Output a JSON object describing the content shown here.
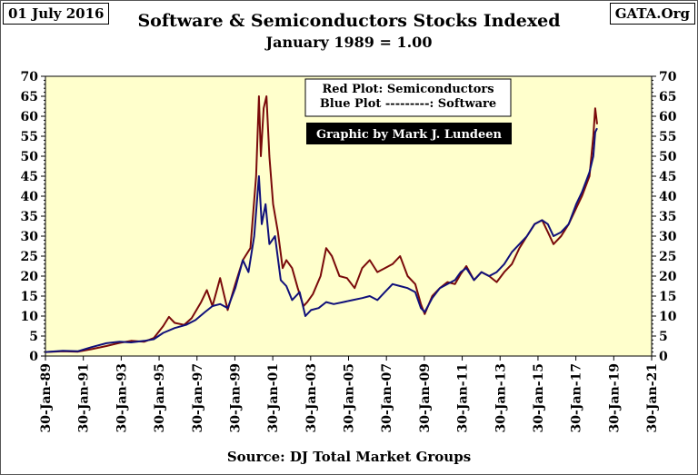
{
  "header": {
    "date": "01 July 2016",
    "site": "GATA.Org"
  },
  "footer": {
    "source": "Source: DJ  Total Market Groups"
  },
  "chart_data": {
    "type": "line",
    "title": "Software & Semiconductors  Stocks Indexed",
    "subtitle": "January 1989 = 1.00",
    "ylim": [
      0,
      70
    ],
    "yticks": [
      "0",
      "5",
      "10",
      "15",
      "20",
      "25",
      "30",
      "35",
      "40",
      "45",
      "50",
      "55",
      "60",
      "65",
      "70"
    ],
    "xlim": [
      1989.08,
      2021.08
    ],
    "xticks": [
      {
        "x": 1989.08,
        "label": "30-Jan-89"
      },
      {
        "x": 1991.08,
        "label": "30-Jan-91"
      },
      {
        "x": 1993.08,
        "label": "30-Jan-93"
      },
      {
        "x": 1995.08,
        "label": "30-Jan-95"
      },
      {
        "x": 1997.08,
        "label": "30-Jan-97"
      },
      {
        "x": 1999.08,
        "label": "30-Jan-99"
      },
      {
        "x": 2001.08,
        "label": "30-Jan-01"
      },
      {
        "x": 2003.08,
        "label": "30-Jan-03"
      },
      {
        "x": 2005.08,
        "label": "30-Jan-05"
      },
      {
        "x": 2007.08,
        "label": "30-Jan-07"
      },
      {
        "x": 2009.08,
        "label": "30-Jan-09"
      },
      {
        "x": 2011.08,
        "label": "30-Jan-11"
      },
      {
        "x": 2013.08,
        "label": "30-Jan-13"
      },
      {
        "x": 2015.08,
        "label": "30-Jan-15"
      },
      {
        "x": 2017.08,
        "label": "30-Jan-17"
      },
      {
        "x": 2019.08,
        "label": "30-Jan-19"
      },
      {
        "x": 2021.08,
        "label": "30-Jan-21"
      }
    ],
    "grid": false,
    "legend": {
      "line1": "Red Plot: Semiconductors",
      "line2": "Blue Plot ---------: Software",
      "credit": "Graphic by Mark J. Lundeen",
      "placement": "top-center"
    },
    "colors": {
      "plot_bg": "#ffffcc",
      "semiconductors": "#7a0a0a",
      "software": "#10107a"
    },
    "series": [
      {
        "name": "Semiconductors",
        "color": "#7a0a0a",
        "points": [
          [
            1989.08,
            1.0
          ],
          [
            1990.0,
            1.2
          ],
          [
            1990.8,
            1.1
          ],
          [
            1991.5,
            1.7
          ],
          [
            1992.3,
            2.5
          ],
          [
            1993.0,
            3.3
          ],
          [
            1993.6,
            3.8
          ],
          [
            1994.3,
            3.6
          ],
          [
            1994.8,
            4.5
          ],
          [
            1995.3,
            7.5
          ],
          [
            1995.6,
            9.8
          ],
          [
            1995.9,
            8.3
          ],
          [
            1996.4,
            7.8
          ],
          [
            1996.8,
            9.5
          ],
          [
            1997.3,
            13.5
          ],
          [
            1997.6,
            16.5
          ],
          [
            1997.9,
            12.5
          ],
          [
            1998.3,
            19.5
          ],
          [
            1998.7,
            11.5
          ],
          [
            1999.1,
            18.0
          ],
          [
            1999.5,
            24.0
          ],
          [
            1999.9,
            27.0
          ],
          [
            2000.2,
            45.0
          ],
          [
            2000.35,
            65.0
          ],
          [
            2000.45,
            50.0
          ],
          [
            2000.6,
            62.0
          ],
          [
            2000.75,
            65.0
          ],
          [
            2000.9,
            50.0
          ],
          [
            2001.1,
            38.0
          ],
          [
            2001.35,
            31.0
          ],
          [
            2001.6,
            22.0
          ],
          [
            2001.8,
            24.0
          ],
          [
            2002.1,
            22.0
          ],
          [
            2002.4,
            17.0
          ],
          [
            2002.7,
            12.5
          ],
          [
            2002.9,
            13.5
          ],
          [
            2003.2,
            15.5
          ],
          [
            2003.6,
            20.0
          ],
          [
            2003.9,
            27.0
          ],
          [
            2004.2,
            25.0
          ],
          [
            2004.6,
            20.0
          ],
          [
            2005.0,
            19.5
          ],
          [
            2005.4,
            17.0
          ],
          [
            2005.8,
            22.0
          ],
          [
            2006.2,
            24.0
          ],
          [
            2006.6,
            21.0
          ],
          [
            2007.0,
            22.0
          ],
          [
            2007.4,
            23.0
          ],
          [
            2007.8,
            25.0
          ],
          [
            2008.2,
            20.0
          ],
          [
            2008.6,
            18.0
          ],
          [
            2008.9,
            13.0
          ],
          [
            2009.1,
            10.5
          ],
          [
            2009.5,
            15.0
          ],
          [
            2009.9,
            17.0
          ],
          [
            2010.3,
            18.5
          ],
          [
            2010.7,
            18.0
          ],
          [
            2011.0,
            20.5
          ],
          [
            2011.3,
            22.5
          ],
          [
            2011.7,
            19.0
          ],
          [
            2012.1,
            21.0
          ],
          [
            2012.5,
            20.0
          ],
          [
            2012.9,
            18.5
          ],
          [
            2013.3,
            21.0
          ],
          [
            2013.7,
            23.0
          ],
          [
            2014.1,
            27.0
          ],
          [
            2014.5,
            30.0
          ],
          [
            2014.9,
            33.0
          ],
          [
            2015.3,
            34.0
          ],
          [
            2015.6,
            31.0
          ],
          [
            2015.9,
            28.0
          ],
          [
            2016.3,
            30.0
          ],
          [
            2016.7,
            33.0
          ],
          [
            2017.1,
            37.0
          ],
          [
            2017.4,
            40.0
          ],
          [
            2017.8,
            45.0
          ],
          [
            2018.0,
            55.0
          ],
          [
            2018.1,
            62.0
          ],
          [
            2018.2,
            58.0
          ]
        ]
      },
      {
        "name": "Software",
        "color": "#10107a",
        "points": [
          [
            1989.08,
            1.0
          ],
          [
            1990.0,
            1.3
          ],
          [
            1990.8,
            1.2
          ],
          [
            1991.5,
            2.2
          ],
          [
            1992.3,
            3.2
          ],
          [
            1993.0,
            3.6
          ],
          [
            1993.6,
            3.4
          ],
          [
            1994.3,
            3.8
          ],
          [
            1994.8,
            4.2
          ],
          [
            1995.3,
            5.8
          ],
          [
            1995.9,
            7.0
          ],
          [
            1996.5,
            7.8
          ],
          [
            1997.0,
            9.0
          ],
          [
            1997.5,
            11.0
          ],
          [
            1997.9,
            12.5
          ],
          [
            1998.3,
            13.0
          ],
          [
            1998.7,
            12.0
          ],
          [
            1999.1,
            17.0
          ],
          [
            1999.5,
            24.0
          ],
          [
            1999.8,
            21.0
          ],
          [
            2000.1,
            30.0
          ],
          [
            2000.35,
            45.0
          ],
          [
            2000.5,
            33.0
          ],
          [
            2000.7,
            38.0
          ],
          [
            2000.9,
            28.0
          ],
          [
            2001.2,
            30.0
          ],
          [
            2001.5,
            19.0
          ],
          [
            2001.8,
            17.5
          ],
          [
            2002.1,
            14.0
          ],
          [
            2002.5,
            16.0
          ],
          [
            2002.8,
            10.0
          ],
          [
            2003.1,
            11.5
          ],
          [
            2003.5,
            12.0
          ],
          [
            2003.9,
            13.5
          ],
          [
            2004.3,
            13.0
          ],
          [
            2004.8,
            13.5
          ],
          [
            2005.3,
            14.0
          ],
          [
            2005.8,
            14.5
          ],
          [
            2006.2,
            15.0
          ],
          [
            2006.6,
            14.0
          ],
          [
            2007.0,
            16.0
          ],
          [
            2007.4,
            18.0
          ],
          [
            2007.8,
            17.5
          ],
          [
            2008.2,
            17.0
          ],
          [
            2008.6,
            16.0
          ],
          [
            2008.9,
            12.0
          ],
          [
            2009.1,
            11.0
          ],
          [
            2009.5,
            14.5
          ],
          [
            2009.9,
            17.0
          ],
          [
            2010.3,
            18.0
          ],
          [
            2010.7,
            19.0
          ],
          [
            2011.0,
            21.0
          ],
          [
            2011.3,
            22.0
          ],
          [
            2011.7,
            19.0
          ],
          [
            2012.1,
            21.0
          ],
          [
            2012.5,
            20.0
          ],
          [
            2012.9,
            21.0
          ],
          [
            2013.3,
            23.0
          ],
          [
            2013.7,
            26.0
          ],
          [
            2014.1,
            28.0
          ],
          [
            2014.5,
            30.0
          ],
          [
            2014.9,
            33.0
          ],
          [
            2015.3,
            34.0
          ],
          [
            2015.6,
            33.0
          ],
          [
            2015.9,
            30.0
          ],
          [
            2016.3,
            31.0
          ],
          [
            2016.7,
            33.0
          ],
          [
            2017.1,
            38.0
          ],
          [
            2017.4,
            41.0
          ],
          [
            2017.8,
            46.0
          ],
          [
            2018.0,
            50.0
          ],
          [
            2018.1,
            56.0
          ],
          [
            2018.2,
            57.0
          ]
        ]
      }
    ]
  }
}
